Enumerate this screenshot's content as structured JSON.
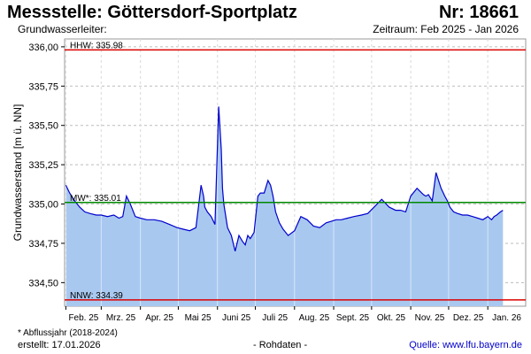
{
  "header": {
    "title": "Messstelle: Göttersdorf-Sportplatz",
    "station_no": "Nr: 18661",
    "aquifer_label": "Grundwasserleiter:",
    "period": "Zeitraum: Feb 2025 - Jan 2026"
  },
  "footer": {
    "note": "* Abflussjahr (2018-2024)",
    "created": "erstellt:  17.01.2026",
    "raw_data": "- Rohdaten -",
    "source_prefix": "Quelle: ",
    "source_link": "www.lfu.bayern.de"
  },
  "colors": {
    "line": "#0000cc",
    "fill": "#a8c8f0",
    "hhw": "#dd0000",
    "nnw": "#dd0000",
    "mw": "#008800",
    "grid": "#bbbbbb"
  },
  "chart_data": {
    "type": "area",
    "ylabel": "Grundwasserstand [m ü. NN]",
    "ylim": [
      334.35,
      336.05
    ],
    "yticks": [
      334.5,
      334.75,
      335.0,
      335.25,
      335.5,
      335.75,
      336.0
    ],
    "ytick_labels": [
      "334,50",
      "334,75",
      "335,00",
      "335,25",
      "335,50",
      "335,75",
      "336,00"
    ],
    "xlim": [
      "2025-01-31",
      "2026-01-31"
    ],
    "xticks": [
      "2025-02-01",
      "2025-03-01",
      "2025-04-01",
      "2025-05-01",
      "2025-06-01",
      "2025-07-01",
      "2025-08-01",
      "2025-09-01",
      "2025-10-01",
      "2025-11-01",
      "2025-12-01",
      "2026-01-01"
    ],
    "xtick_labels": [
      "Feb. 25",
      "Mrz. 25",
      "Apr. 25",
      "Mai 25",
      "Juni 25",
      "Juli 25",
      "Aug. 25",
      "Sept. 25",
      "Okt. 25",
      "Nov. 25",
      "Dez. 25",
      "Jan. 26"
    ],
    "reference_lines": [
      {
        "label": "HHW: 335.98",
        "value": 335.98,
        "color": "#dd0000"
      },
      {
        "label": "MW*: 335.01",
        "value": 335.01,
        "color": "#008800"
      },
      {
        "label": "NNW: 334.39",
        "value": 334.39,
        "color": "#dd0000"
      }
    ],
    "series": [
      {
        "x": [
          "2025-02-01",
          "2025-02-04",
          "2025-02-08",
          "2025-02-12",
          "2025-02-16",
          "2025-02-20",
          "2025-02-25",
          "2025-03-01",
          "2025-03-06",
          "2025-03-11",
          "2025-03-15",
          "2025-03-18",
          "2025-03-21",
          "2025-03-24",
          "2025-03-28",
          "2025-04-01",
          "2025-04-06",
          "2025-04-12",
          "2025-04-18",
          "2025-04-24",
          "2025-04-30",
          "2025-05-05",
          "2025-05-10",
          "2025-05-15",
          "2025-05-19",
          "2025-05-21",
          "2025-05-22",
          "2025-05-24",
          "2025-05-27",
          "2025-05-30",
          "2025-06-02",
          "2025-06-04",
          "2025-06-05",
          "2025-06-06",
          "2025-06-07",
          "2025-06-09",
          "2025-06-12",
          "2025-06-15",
          "2025-06-18",
          "2025-06-21",
          "2025-06-22",
          "2025-06-23",
          "2025-06-25",
          "2025-06-27",
          "2025-06-30",
          "2025-07-03",
          "2025-07-05",
          "2025-07-08",
          "2025-07-11",
          "2025-07-13",
          "2025-07-15",
          "2025-07-17",
          "2025-07-20",
          "2025-07-23",
          "2025-07-27",
          "2025-08-01",
          "2025-08-06",
          "2025-08-11",
          "2025-08-16",
          "2025-08-21",
          "2025-08-26",
          "2025-08-30",
          "2025-09-03",
          "2025-09-07",
          "2025-09-12",
          "2025-09-17",
          "2025-09-23",
          "2025-09-28",
          "2025-10-03",
          "2025-10-09",
          "2025-10-15",
          "2025-10-20",
          "2025-10-24",
          "2025-10-28",
          "2025-11-01",
          "2025-11-06",
          "2025-11-11",
          "2025-11-13",
          "2025-11-15",
          "2025-11-18",
          "2025-11-21",
          "2025-11-25",
          "2025-11-28",
          "2025-11-30",
          "2025-12-02",
          "2025-12-05",
          "2025-12-08",
          "2025-12-12",
          "2025-12-16",
          "2025-12-20",
          "2025-12-24",
          "2025-12-28",
          "2026-01-01",
          "2026-01-04",
          "2026-01-06",
          "2026-01-08",
          "2026-01-11",
          "2026-01-13"
        ],
        "values": [
          335.12,
          335.07,
          335.02,
          334.98,
          334.95,
          334.94,
          334.93,
          334.93,
          334.92,
          334.93,
          334.91,
          334.92,
          335.05,
          335.0,
          334.92,
          334.91,
          334.9,
          334.9,
          334.89,
          334.87,
          334.85,
          334.84,
          334.83,
          334.85,
          335.12,
          335.05,
          334.98,
          334.95,
          334.92,
          334.87,
          335.62,
          335.35,
          335.1,
          335.0,
          334.95,
          334.85,
          334.8,
          334.7,
          334.8,
          334.76,
          334.75,
          334.74,
          334.8,
          334.78,
          334.82,
          335.05,
          335.07,
          335.07,
          335.15,
          335.12,
          335.05,
          334.95,
          334.88,
          334.84,
          334.8,
          334.83,
          334.92,
          334.9,
          334.86,
          334.85,
          334.88,
          334.89,
          334.9,
          334.9,
          334.91,
          334.92,
          334.93,
          334.94,
          334.98,
          335.03,
          334.98,
          334.96,
          334.96,
          334.95,
          335.05,
          335.1,
          335.06,
          335.05,
          335.06,
          335.02,
          335.2,
          335.1,
          335.05,
          335.02,
          334.98,
          334.95,
          334.94,
          334.93,
          334.93,
          334.92,
          334.91,
          334.9,
          334.92,
          334.9,
          334.92,
          334.93,
          334.95,
          334.96
        ]
      }
    ]
  }
}
